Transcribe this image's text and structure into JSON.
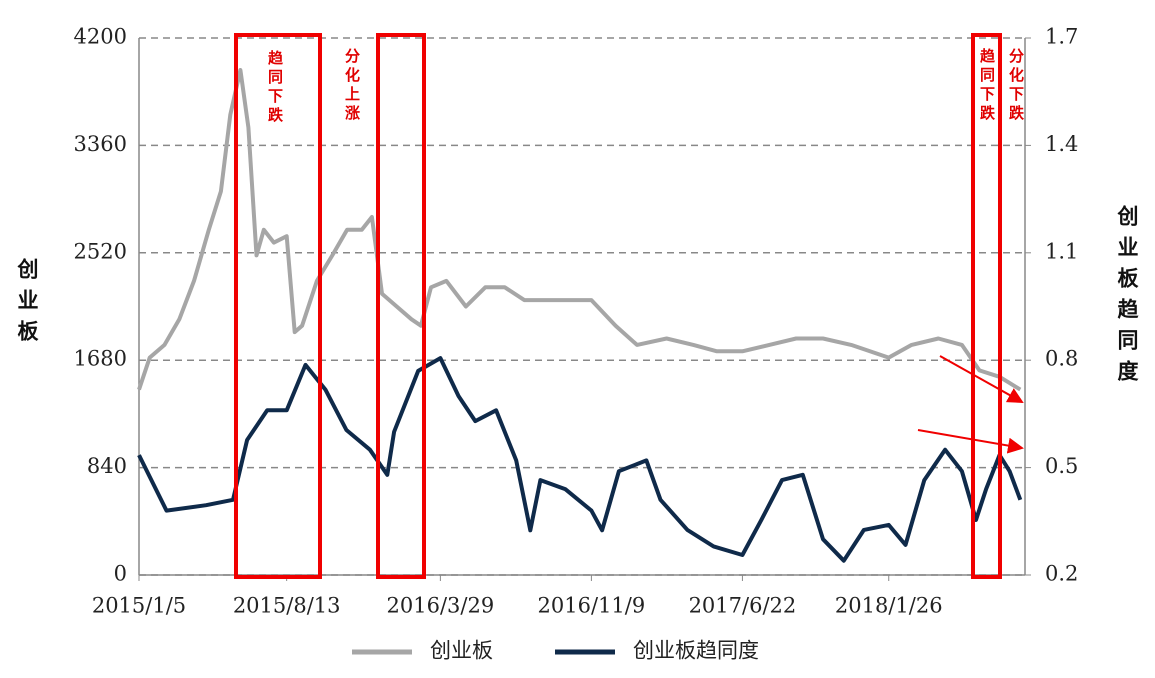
{
  "chart_data": {
    "type": "line",
    "xlim": [
      "2015/1/5",
      "2018/8/17"
    ],
    "xticks": [
      "2015/1/5",
      "2015/8/13",
      "2016/3/29",
      "2016/11/9",
      "2017/6/22",
      "2018/1/26"
    ],
    "ylim": [
      0,
      4200
    ],
    "yticks": [
      0,
      840,
      1680,
      2520,
      3360,
      4200
    ],
    "y2lim": [
      0.2,
      1.7
    ],
    "y2ticks": [
      0.2,
      0.5,
      0.8,
      1.1,
      1.4,
      1.7
    ],
    "ylabel": "创业板",
    "y2label": "创业板趋同度",
    "grid": true,
    "annotations": [
      "趋同下跌",
      "分化上涨",
      "趋同下跌",
      "分化下跌"
    ],
    "series": [
      {
        "name": "创业板",
        "color": "#a6a6a6",
        "x": [
          "2015/1/5",
          "2015/1/21",
          "2015/2/12",
          "2015/3/6",
          "2015/3/28",
          "2015/4/19",
          "2015/5/7",
          "2015/5/21",
          "2015/6/5",
          "2015/6/17",
          "2015/6/29",
          "2015/7/10",
          "2015/7/25",
          "2015/8/13",
          "2015/8/25",
          "2015/9/5",
          "2015/9/27",
          "2015/10/20",
          "2015/11/11",
          "2015/12/3",
          "2015/12/18",
          "2016/1/2",
          "2016/1/24",
          "2016/2/15",
          "2016/2/29",
          "2016/3/15",
          "2016/4/7",
          "2016/5/6",
          "2016/6/4",
          "2016/7/3",
          "2016/8/1",
          "2016/9/14",
          "2016/11/9",
          "2016/12/15",
          "2017/1/16",
          "2017/3/1",
          "2017/4/10",
          "2017/5/15",
          "2017/6/22",
          "2017/8/1",
          "2017/9/10",
          "2017/10/20",
          "2017/12/1",
          "2018/1/26",
          "2018/3/1",
          "2018/4/10",
          "2018/5/15",
          "2018/6/10",
          "2018/7/10",
          "2018/8/10"
        ],
        "values": [
          1450,
          1700,
          1800,
          2000,
          2300,
          2700,
          3000,
          3600,
          3950,
          3500,
          2500,
          2700,
          2600,
          2650,
          1900,
          1950,
          2300,
          2500,
          2700,
          2700,
          2800,
          2200,
          2100,
          2000,
          1950,
          2250,
          2300,
          2100,
          2250,
          2250,
          2150,
          2150,
          2150,
          1950,
          1800,
          1850,
          1800,
          1750,
          1750,
          1800,
          1850,
          1850,
          1800,
          1700,
          1800,
          1850,
          1800,
          1600,
          1550,
          1450
        ]
      },
      {
        "name": "创业板趋同度",
        "color": "#0f2a4a",
        "axis": "y2",
        "x": [
          "2015/1/5",
          "2015/2/15",
          "2015/4/15",
          "2015/5/25",
          "2015/6/15",
          "2015/7/15",
          "2015/8/13",
          "2015/9/10",
          "2015/10/10",
          "2015/11/10",
          "2015/12/15",
          "2016/1/10",
          "2016/1/20",
          "2016/2/25",
          "2016/3/29",
          "2016/4/25",
          "2016/5/20",
          "2016/6/20",
          "2016/7/20",
          "2016/8/10",
          "2016/8/25",
          "2016/10/1",
          "2016/11/9",
          "2016/11/25",
          "2016/12/20",
          "2017/1/30",
          "2017/2/20",
          "2017/4/1",
          "2017/5/10",
          "2017/6/22",
          "2017/7/20",
          "2017/8/20",
          "2017/9/20",
          "2017/10/20",
          "2017/11/20",
          "2017/12/20",
          "2018/1/26",
          "2018/2/20",
          "2018/3/20",
          "2018/4/20",
          "2018/5/15",
          "2018/6/5",
          "2018/6/20",
          "2018/7/10",
          "2018/7/25",
          "2018/8/10"
        ],
        "values": [
          0.535,
          0.38,
          0.395,
          0.41,
          0.577,
          0.66,
          0.66,
          0.787,
          0.717,
          0.605,
          0.55,
          0.48,
          0.6,
          0.77,
          0.806,
          0.7,
          0.63,
          0.66,
          0.52,
          0.325,
          0.465,
          0.44,
          0.38,
          0.325,
          0.49,
          0.52,
          0.41,
          0.326,
          0.28,
          0.256,
          0.353,
          0.465,
          0.48,
          0.3,
          0.24,
          0.326,
          0.34,
          0.284,
          0.465,
          0.55,
          0.49,
          0.354,
          0.44,
          0.535,
          0.49,
          0.41
        ]
      }
    ]
  }
}
